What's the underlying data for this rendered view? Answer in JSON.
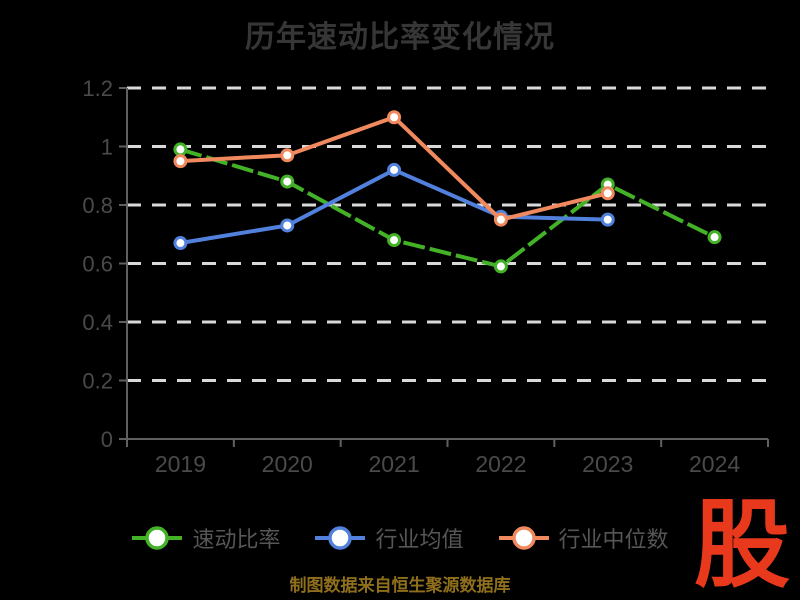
{
  "title": "历年速动比率变化情况",
  "chart_data": {
    "type": "line",
    "title": "历年速动比率变化情况",
    "categories": [
      "2019",
      "2020",
      "2021",
      "2022",
      "2023",
      "2024"
    ],
    "series": [
      {
        "name": "速动比率",
        "color": "#43b227",
        "line_style": "dashed",
        "values": [
          0.99,
          0.88,
          0.68,
          0.59,
          0.87,
          0.69
        ]
      },
      {
        "name": "行业均值",
        "color": "#5181dc",
        "line_style": "solid",
        "values": [
          0.67,
          0.73,
          0.92,
          0.76,
          0.75,
          null
        ]
      },
      {
        "name": "行业中位数",
        "color": "#f08a5e",
        "line_style": "solid",
        "values": [
          0.95,
          0.97,
          1.1,
          0.75,
          0.84,
          null
        ]
      }
    ],
    "ylim": [
      0,
      1.2
    ],
    "y_ticks": [
      0,
      0.2,
      0.4,
      0.6,
      0.8,
      1,
      1.2
    ],
    "y_tick_labels": [
      "0",
      "0.2",
      "0.4",
      "0.6",
      "0.8",
      "1",
      "1.2"
    ],
    "xlabel": "",
    "ylabel": "",
    "grid": "horizontal-dashed-white",
    "legend_position": "bottom",
    "marker": "circle-white-fill-colored-ring"
  },
  "colors": {
    "background": "#000000",
    "title_text": "#363636",
    "axis_line": "#606060",
    "tick_label": "#4a4a4a",
    "gridline": "#d9d9d9",
    "legend_text": "#565656",
    "footer_text": "#8f6f1c",
    "logo_red": "#e8391d",
    "marker_fill": "#ffffff"
  },
  "footer": {
    "source_text": "制图数据来自恒生聚源数据库"
  },
  "logo": {
    "text": "股"
  }
}
